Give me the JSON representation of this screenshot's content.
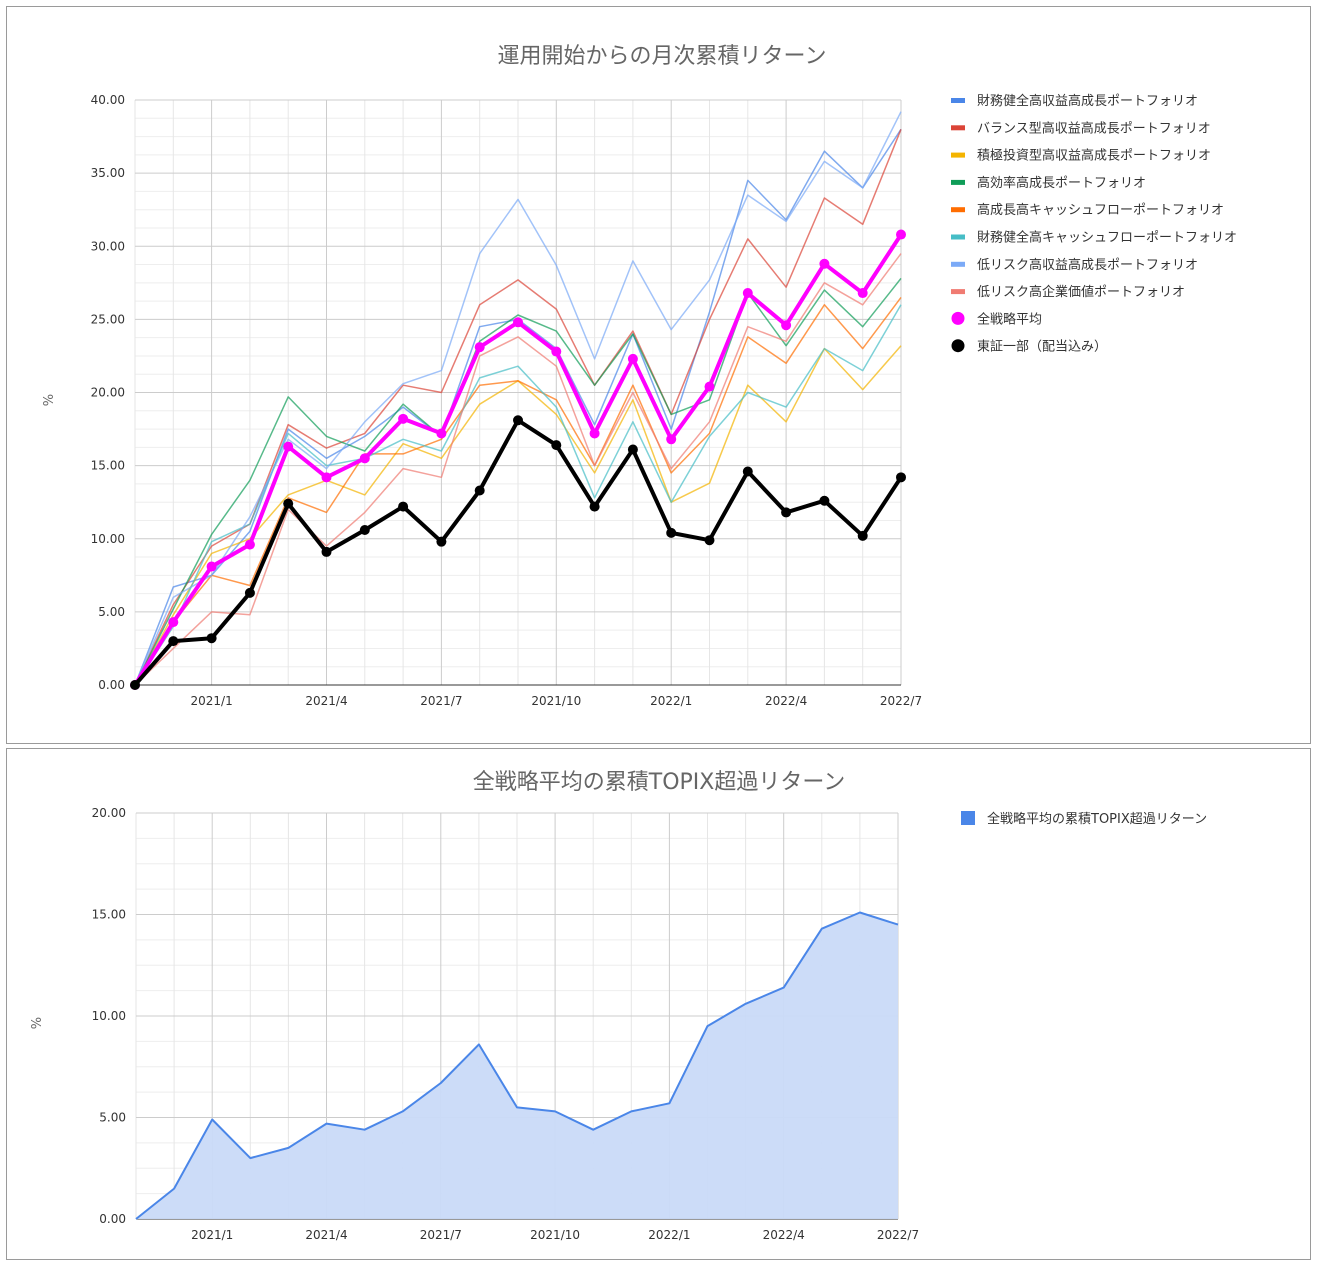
{
  "chart_data": [
    {
      "type": "line",
      "title": "運用開始からの月次累積リターン",
      "ylabel": "%",
      "xlabel": "",
      "ylim": [
        0,
        40
      ],
      "yticks": [
        "0.00",
        "5.00",
        "10.00",
        "15.00",
        "20.00",
        "25.00",
        "30.00",
        "35.00",
        "40.00"
      ],
      "x": [
        "2020/11",
        "2020/12",
        "2021/1",
        "2021/2",
        "2021/3",
        "2021/4",
        "2021/5",
        "2021/6",
        "2021/7",
        "2021/8",
        "2021/9",
        "2021/10",
        "2021/11",
        "2021/12",
        "2022/1",
        "2022/2",
        "2022/3",
        "2022/4",
        "2022/5",
        "2022/6",
        "2022/7"
      ],
      "xtick_labels": [
        "2021/1",
        "2021/4",
        "2021/7",
        "2021/10",
        "2022/1",
        "2022/4",
        "2022/7"
      ],
      "grid": true,
      "legend": "right",
      "series": [
        {
          "name": "財務健全高収益高成長ポートフォリオ",
          "color": "#4a86e8",
          "width": 1.5,
          "values": [
            0,
            6.7,
            7.5,
            10.5,
            17.5,
            15.5,
            17.0,
            19.0,
            17.0,
            24.5,
            25.0,
            23.0,
            17.8,
            24.0,
            17.5,
            25.5,
            34.5,
            31.8,
            36.5,
            34.0,
            38.0
          ]
        },
        {
          "name": "バランス型高収益高成長ポートフォリオ",
          "color": "#db4437",
          "width": 1.5,
          "values": [
            0,
            5.5,
            9.5,
            11.0,
            17.8,
            16.2,
            17.2,
            20.5,
            20.0,
            26.0,
            27.7,
            25.7,
            20.5,
            24.2,
            18.5,
            25.0,
            30.5,
            27.2,
            33.3,
            31.5,
            38.0
          ]
        },
        {
          "name": "積極投資型高収益高成長ポートフォリオ",
          "color": "#f4b400",
          "width": 1.5,
          "values": [
            0,
            4.8,
            9.0,
            10.0,
            13.0,
            14.0,
            13.0,
            16.5,
            15.5,
            19.2,
            20.8,
            18.5,
            14.5,
            19.5,
            12.5,
            13.8,
            20.5,
            18.0,
            23.0,
            20.2,
            23.2
          ]
        },
        {
          "name": "高効率高成長ポートフォリオ",
          "color": "#0f9d58",
          "width": 1.5,
          "values": [
            0,
            5.2,
            10.3,
            14.0,
            19.7,
            17.0,
            16.0,
            19.2,
            17.0,
            23.5,
            25.3,
            24.2,
            20.5,
            24.0,
            18.5,
            19.5,
            26.8,
            23.2,
            27.0,
            24.5,
            27.8
          ]
        },
        {
          "name": "高成長高キャッシュフローポートフォリオ",
          "color": "#ff6d01",
          "width": 1.5,
          "values": [
            0,
            4.3,
            7.5,
            6.8,
            12.8,
            11.8,
            15.8,
            15.8,
            16.8,
            20.5,
            20.8,
            19.5,
            15.0,
            20.5,
            14.5,
            17.2,
            23.8,
            22.0,
            26.0,
            23.0,
            26.5
          ]
        },
        {
          "name": "財務健全高キャッシュフローポートフォリオ",
          "color": "#46bdc6",
          "width": 1.5,
          "values": [
            0,
            4.0,
            9.8,
            11.0,
            17.2,
            15.0,
            15.5,
            16.8,
            16.0,
            21.0,
            21.8,
            19.0,
            12.8,
            18.0,
            12.5,
            17.0,
            20.0,
            19.0,
            23.0,
            21.5,
            26.0
          ]
        },
        {
          "name": "低リスク高収益高成長ポートフォリオ",
          "color": "#7baaf7",
          "width": 1.5,
          "values": [
            0,
            6.0,
            7.5,
            11.5,
            16.8,
            14.8,
            18.0,
            20.6,
            21.5,
            29.5,
            33.2,
            28.7,
            22.3,
            29.0,
            24.3,
            27.7,
            33.5,
            31.7,
            35.8,
            34.0,
            39.2
          ]
        },
        {
          "name": "低リスク高企業価値ポートフォリオ",
          "color": "#f07b72",
          "width": 1.5,
          "values": [
            0,
            2.5,
            5.0,
            4.8,
            12.0,
            9.5,
            11.8,
            14.8,
            14.2,
            22.5,
            23.8,
            21.8,
            15.0,
            20.0,
            14.8,
            18.0,
            24.5,
            23.5,
            27.5,
            26.0,
            29.5
          ]
        },
        {
          "name": "全戦略平均",
          "color": "#ff00ff",
          "width": 4,
          "points": true,
          "pointRadius": 5,
          "values": [
            0,
            4.3,
            8.1,
            9.6,
            16.3,
            14.2,
            15.5,
            18.2,
            17.2,
            23.1,
            24.8,
            22.8,
            17.2,
            22.3,
            16.8,
            20.4,
            26.8,
            24.6,
            28.8,
            26.8,
            30.8
          ]
        },
        {
          "name": "東証一部（配当込み）",
          "color": "#000000",
          "width": 4,
          "points": true,
          "pointRadius": 5,
          "values": [
            0,
            3.0,
            3.2,
            6.3,
            12.4,
            9.1,
            10.6,
            12.2,
            9.8,
            13.3,
            18.1,
            16.4,
            12.2,
            16.1,
            10.4,
            9.9,
            14.6,
            11.8,
            12.6,
            10.2,
            14.2
          ]
        }
      ]
    },
    {
      "type": "area",
      "title": "全戦略平均の累積TOPIX超過リターン",
      "ylabel": "%",
      "xlabel": "",
      "ylim": [
        0,
        20
      ],
      "yticks": [
        "0.00",
        "5.00",
        "10.00",
        "15.00",
        "20.00"
      ],
      "x": [
        "2020/11",
        "2020/12",
        "2021/1",
        "2021/2",
        "2021/3",
        "2021/4",
        "2021/5",
        "2021/6",
        "2021/7",
        "2021/8",
        "2021/9",
        "2021/10",
        "2021/11",
        "2021/12",
        "2022/1",
        "2022/2",
        "2022/3",
        "2022/4",
        "2022/5",
        "2022/6",
        "2022/7"
      ],
      "xtick_labels": [
        "2021/1",
        "2021/4",
        "2021/7",
        "2021/10",
        "2022/1",
        "2022/4",
        "2022/7"
      ],
      "grid": true,
      "legend": "right",
      "series": [
        {
          "name": "全戦略平均の累積TOPIX超過リターン",
          "color": "#4a86e8",
          "fill": "#c9daf8",
          "values": [
            0,
            1.5,
            4.9,
            3.0,
            3.5,
            4.7,
            4.4,
            5.3,
            6.7,
            8.6,
            5.5,
            5.3,
            4.4,
            5.3,
            5.7,
            9.5,
            10.6,
            11.4,
            14.3,
            15.1,
            14.5
          ]
        }
      ]
    }
  ]
}
